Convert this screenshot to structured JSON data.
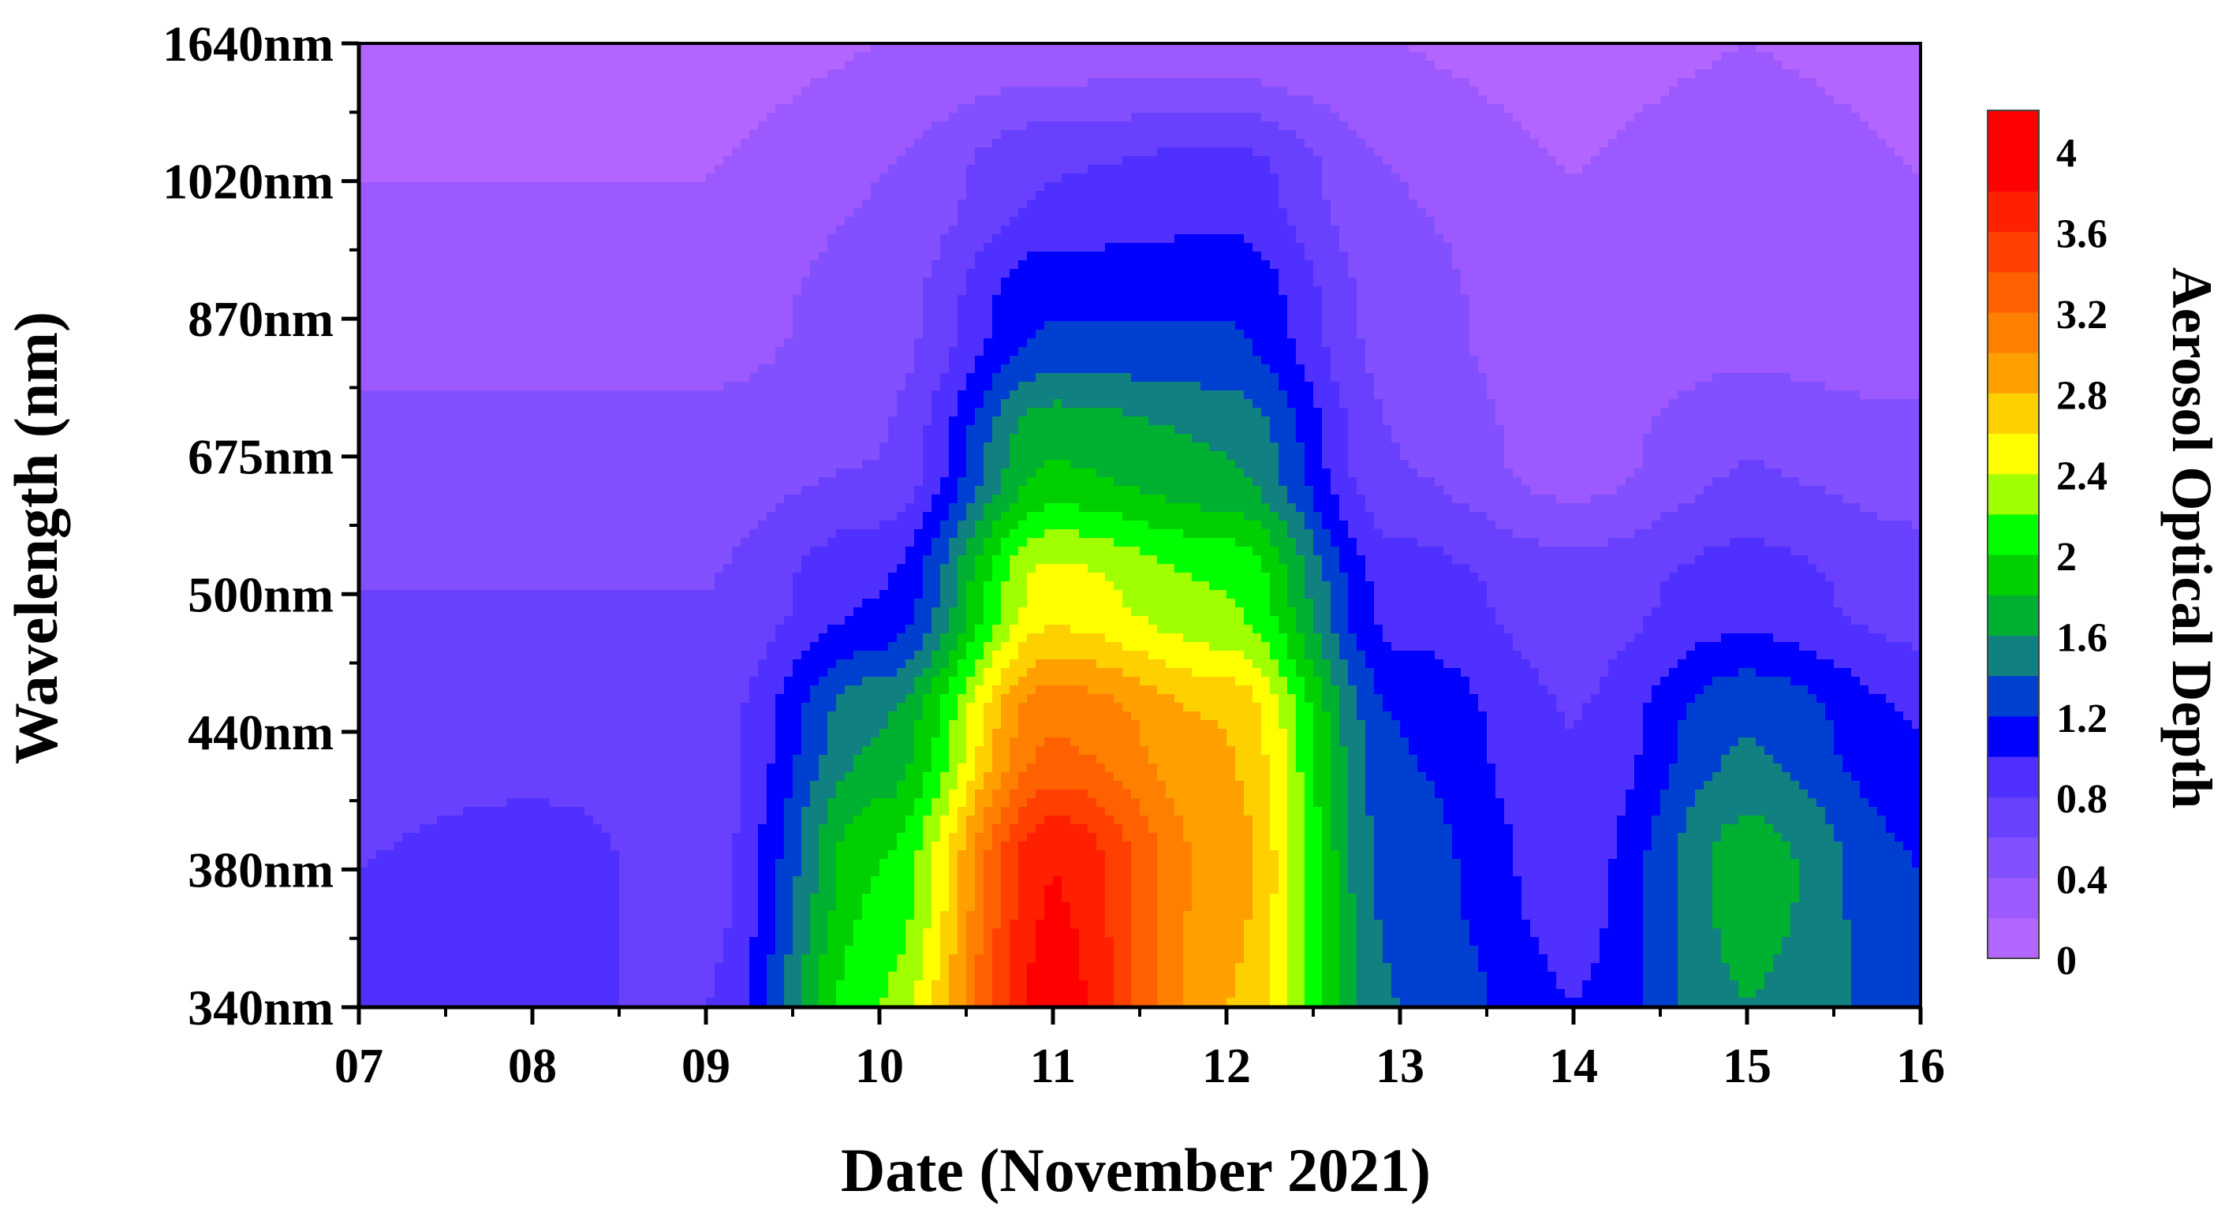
{
  "chart_data": {
    "type": "heatmap",
    "subtype": "filled-contour",
    "xlabel": "Date (November 2021)",
    "ylabel": "Wavelength (nm)",
    "x_categories": [
      "07",
      "08",
      "09",
      "10",
      "11",
      "12",
      "13",
      "14",
      "15",
      "16"
    ],
    "y_categories": [
      "340nm",
      "380nm",
      "440nm",
      "500nm",
      "675nm",
      "870nm",
      "1020nm",
      "1640nm"
    ],
    "colorbar": {
      "label": "Aerosol Optical Depth",
      "min": 0,
      "max": 4.2,
      "step": 0.2,
      "tick_labels": [
        "4",
        "3.6",
        "3.2",
        "2.8",
        "2.4",
        "2",
        "1.6",
        "1.2",
        "0.8",
        "0.4",
        "0"
      ],
      "tick_values": [
        4,
        3.6,
        3.2,
        2.8,
        2.4,
        2,
        1.6,
        1.2,
        0.8,
        0.4,
        0
      ],
      "colors": [
        "#b266ff",
        "#9b59ff",
        "#8250ff",
        "#6a40ff",
        "#5030ff",
        "#0000ff",
        "#0040d0",
        "#108080",
        "#00b030",
        "#00d000",
        "#00ff00",
        "#a0ff00",
        "#ffff00",
        "#ffd000",
        "#ffa000",
        "#ff8000",
        "#ff6000",
        "#ff4000",
        "#ff2000",
        "#ff0000",
        "#ff0000"
      ]
    },
    "values": [
      [
        0.9,
        0.8,
        0.8,
        2.2,
        3.9,
        2.8,
        1.4,
        1.0,
        1.6,
        1.3
      ],
      [
        0.8,
        0.9,
        0.7,
        2.0,
        3.8,
        2.9,
        1.3,
        0.9,
        1.7,
        1.2
      ],
      [
        0.7,
        0.7,
        0.7,
        1.6,
        3.2,
        2.8,
        1.2,
        0.8,
        1.4,
        1.0
      ],
      [
        0.6,
        0.6,
        0.6,
        1.0,
        2.5,
        2.2,
        0.9,
        0.7,
        0.9,
        0.7
      ],
      [
        0.5,
        0.5,
        0.5,
        0.6,
        1.8,
        1.6,
        0.6,
        0.3,
        0.6,
        0.5
      ],
      [
        0.3,
        0.3,
        0.3,
        0.5,
        1.2,
        1.2,
        0.5,
        0.2,
        0.3,
        0.2
      ],
      [
        0.2,
        0.2,
        0.2,
        0.4,
        0.8,
        0.9,
        0.4,
        0.2,
        0.4,
        0.2
      ],
      [
        0.0,
        0.0,
        0.1,
        0.2,
        0.3,
        0.3,
        0.2,
        0.1,
        0.2,
        0.1
      ]
    ]
  }
}
